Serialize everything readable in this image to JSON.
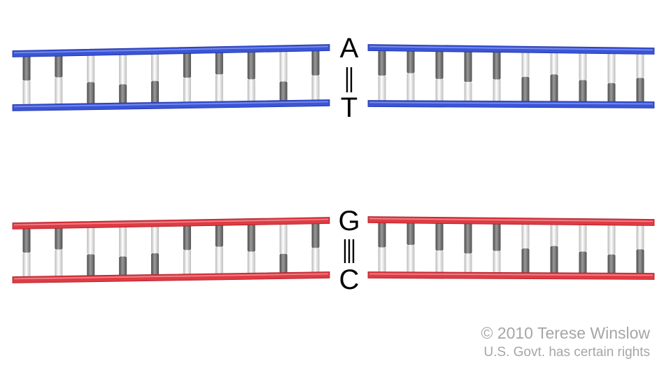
{
  "pairs": [
    {
      "id": "at",
      "top_base": "A",
      "bottom_base": "T",
      "bond_count": 2,
      "strand_color": "#3a55d6",
      "strand_highlight": "#7f92ee",
      "strand_shadow": "#1e2f9e"
    },
    {
      "id": "gc",
      "top_base": "G",
      "bottom_base": "C",
      "bond_count": 3,
      "strand_color": "#df3b44",
      "strand_highlight": "#f28a90",
      "strand_shadow": "#a81e27"
    }
  ],
  "rungs_per_segment": 10,
  "rung_colors": {
    "dark": "#6e6e6e",
    "light": "#e6e6e6"
  },
  "credit": {
    "line1": "© 2010 Terese Winslow",
    "line2": "U.S. Govt. has certain rights"
  }
}
